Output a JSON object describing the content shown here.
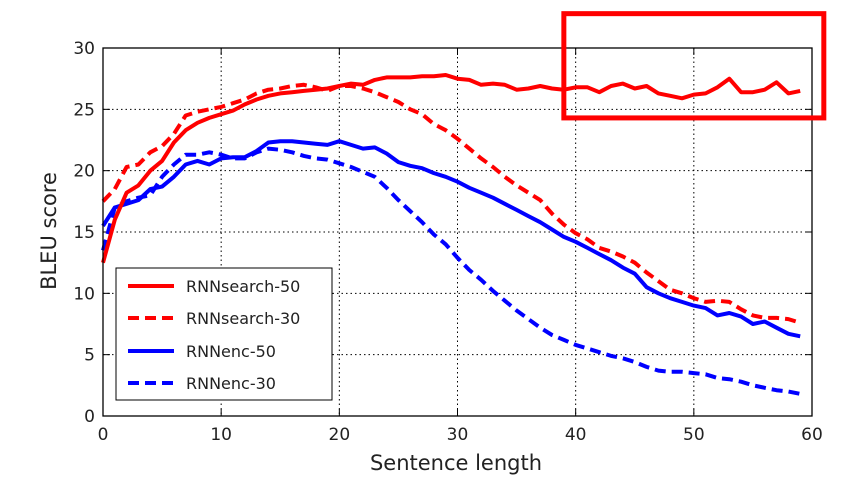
{
  "chart_data": {
    "type": "line",
    "title": "",
    "xlabel": "Sentence length",
    "ylabel": "BLEU score",
    "xlim": [
      0,
      60
    ],
    "ylim": [
      0,
      30
    ],
    "x_ticks": [
      "0",
      "10",
      "20",
      "30",
      "40",
      "50",
      "60"
    ],
    "y_ticks": [
      "0",
      "5",
      "10",
      "15",
      "20",
      "25",
      "30"
    ],
    "grid": true,
    "legend_position": "lower-left",
    "x": [
      0,
      1,
      2,
      3,
      4,
      5,
      6,
      7,
      8,
      9,
      10,
      11,
      12,
      13,
      14,
      15,
      16,
      17,
      18,
      19,
      20,
      21,
      22,
      23,
      24,
      25,
      26,
      27,
      28,
      29,
      30,
      31,
      32,
      33,
      34,
      35,
      36,
      37,
      38,
      39,
      40,
      41,
      42,
      43,
      44,
      45,
      46,
      47,
      48,
      49,
      50,
      51,
      52,
      53,
      54,
      55,
      56,
      57,
      58,
      59
    ],
    "series": [
      {
        "name": "RNNsearch-50",
        "color": "#ff0000",
        "dash": "solid",
        "values": [
          12.5,
          16.0,
          18.2,
          18.8,
          20.0,
          20.8,
          22.3,
          23.3,
          23.9,
          24.3,
          24.6,
          24.9,
          25.4,
          25.8,
          26.1,
          26.3,
          26.4,
          26.5,
          26.6,
          26.7,
          26.9,
          27.1,
          27.0,
          27.4,
          27.6,
          27.6,
          27.6,
          27.7,
          27.7,
          27.8,
          27.5,
          27.4,
          27.0,
          27.1,
          27.0,
          26.6,
          26.7,
          26.9,
          26.7,
          26.6,
          26.8,
          26.8,
          26.4,
          26.9,
          27.1,
          26.7,
          26.9,
          26.3,
          26.1,
          25.9,
          26.2,
          26.3,
          26.8,
          27.5,
          26.4,
          26.4,
          26.6,
          27.2,
          26.3,
          26.5
        ]
      },
      {
        "name": "RNNsearch-30",
        "color": "#ff0000",
        "dash": "dashed",
        "values": [
          17.5,
          18.5,
          20.3,
          20.5,
          21.5,
          22.0,
          23.0,
          24.5,
          24.8,
          25.0,
          25.2,
          25.5,
          25.8,
          26.3,
          26.6,
          26.7,
          26.9,
          27.0,
          26.8,
          26.5,
          26.9,
          26.9,
          26.7,
          26.4,
          26.0,
          25.6,
          25.0,
          24.6,
          23.8,
          23.3,
          22.6,
          21.8,
          21.0,
          20.3,
          19.5,
          18.8,
          18.2,
          17.6,
          16.5,
          15.6,
          14.9,
          14.4,
          13.7,
          13.4,
          13.0,
          12.5,
          11.7,
          11.0,
          10.3,
          10.0,
          9.6,
          9.3,
          9.4,
          9.3,
          8.7,
          8.2,
          8.0,
          8.0,
          7.9,
          7.6
        ]
      },
      {
        "name": "RNNenc-50",
        "color": "#0000ff",
        "dash": "solid",
        "values": [
          15.5,
          17.0,
          17.3,
          17.6,
          18.5,
          18.7,
          19.5,
          20.5,
          20.8,
          20.5,
          21.0,
          21.1,
          21.1,
          21.6,
          22.3,
          22.4,
          22.4,
          22.3,
          22.2,
          22.1,
          22.4,
          22.1,
          21.8,
          21.9,
          21.4,
          20.7,
          20.4,
          20.2,
          19.8,
          19.5,
          19.1,
          18.6,
          18.2,
          17.8,
          17.3,
          16.8,
          16.3,
          15.8,
          15.2,
          14.6,
          14.2,
          13.7,
          13.2,
          12.7,
          12.1,
          11.6,
          10.5,
          10.0,
          9.6,
          9.3,
          9.0,
          8.8,
          8.2,
          8.4,
          8.1,
          7.5,
          7.7,
          7.2,
          6.7,
          6.5
        ]
      },
      {
        "name": "RNNenc-30",
        "color": "#0000ff",
        "dash": "dashed",
        "values": [
          13.5,
          17.0,
          17.5,
          17.8,
          18.0,
          19.5,
          20.5,
          21.3,
          21.3,
          21.5,
          21.3,
          21.0,
          21.0,
          21.5,
          21.8,
          21.7,
          21.5,
          21.2,
          21.0,
          20.9,
          20.6,
          20.3,
          19.9,
          19.5,
          18.6,
          17.6,
          16.7,
          15.8,
          14.8,
          14.0,
          12.9,
          11.9,
          11.1,
          10.2,
          9.4,
          8.6,
          7.9,
          7.2,
          6.6,
          6.2,
          5.8,
          5.5,
          5.2,
          4.9,
          4.7,
          4.4,
          4.0,
          3.7,
          3.6,
          3.6,
          3.5,
          3.4,
          3.1,
          3.0,
          2.8,
          2.5,
          2.3,
          2.1,
          2.0,
          1.8
        ]
      }
    ],
    "highlight_box": {
      "color": "#ff0000",
      "x_range": [
        39,
        61
      ],
      "y_range": [
        24.3,
        32.8
      ]
    }
  }
}
